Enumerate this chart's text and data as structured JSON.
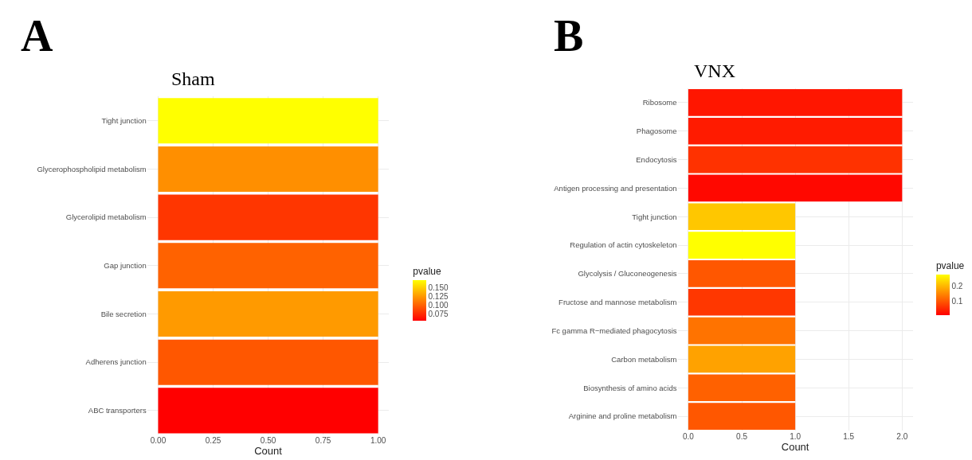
{
  "chart_data": [
    {
      "type": "bar",
      "orientation": "horizontal",
      "title": "Sham",
      "annotations": [
        "A"
      ],
      "xlabel": "Count",
      "clabel": "pvalue",
      "categories": [
        "Tight junction",
        "Glycerophospholipid metabolism",
        "Glycerolipid metabolism",
        "Gap junction",
        "Bile secretion",
        "Adherens junction",
        "ABC transporters"
      ],
      "values": [
        1,
        1,
        1,
        1,
        1,
        1,
        1
      ],
      "cvalues": [
        0.17,
        0.12,
        0.08,
        0.1,
        0.125,
        0.095,
        0.056
      ],
      "clim": [
        0.056,
        0.17
      ],
      "cticks": [
        {
          "value": 0.075,
          "label": "0.075"
        },
        {
          "value": 0.1,
          "label": "0.100"
        },
        {
          "value": 0.125,
          "label": "0.125"
        },
        {
          "value": 0.15,
          "label": "0.150"
        }
      ],
      "xlim": [
        -0.05,
        1.05
      ],
      "xticks": [
        {
          "value": 0,
          "label": "0.00"
        },
        0.25,
        {
          "value": 0.5,
          "label": "0.50"
        },
        0.75,
        {
          "value": 1,
          "label": "1.00"
        }
      ],
      "grid": true
    },
    {
      "type": "bar",
      "orientation": "horizontal",
      "title": "VNX",
      "annotations": [
        "B"
      ],
      "xlabel": "Count",
      "clabel": "pvalue",
      "categories": [
        "Ribosome",
        "Phagosome",
        "Endocytosis",
        "Antigen processing and presentation",
        "Tight junction",
        "Regulation of actin cytoskeleton",
        "Glycolysis / Gluconeogenesis",
        "Fructose and mannose metabolism",
        "Fc gamma R−mediated phagocytosis",
        "Carbon metabolism",
        "Biosynthesis of amino acids",
        "Arginine and proline metabolism"
      ],
      "values": [
        2,
        2,
        2,
        2,
        1,
        1,
        1,
        1,
        1,
        1,
        1,
        1
      ],
      "cvalues": [
        0.03,
        0.035,
        0.06,
        0.015,
        0.22,
        0.28,
        0.1,
        0.065,
        0.13,
        0.18,
        0.11,
        0.1
      ],
      "clim": [
        0.006,
        0.28
      ],
      "cticks": [
        0.1,
        0.2
      ],
      "xlim": [
        -0.1,
        2.1
      ],
      "xticks": [
        {
          "value": 0,
          "label": "0.0"
        },
        0.5,
        {
          "value": 1,
          "label": "1.0"
        },
        1.5,
        {
          "value": 2,
          "label": "2.0"
        }
      ],
      "grid": true
    }
  ]
}
